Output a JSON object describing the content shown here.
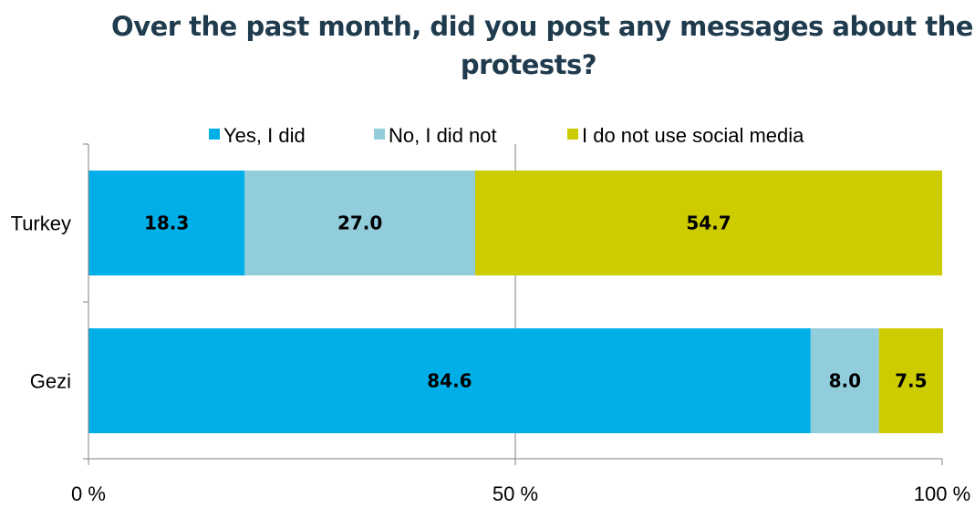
{
  "chart_data": {
    "type": "bar",
    "orientation": "horizontal",
    "stacked": true,
    "title_lines": [
      "Over the past month, did you post any messages about the",
      "protests?"
    ],
    "categories": [
      "Turkey",
      "Gezi"
    ],
    "series": [
      {
        "name": "Yes, I did",
        "values": [
          18.3,
          84.6
        ],
        "labels": [
          "18.3",
          "84.6"
        ],
        "color": "#00aee8"
      },
      {
        "name": "No, I did not",
        "values": [
          27.0,
          8.0
        ],
        "labels": [
          "27.0",
          "8.0"
        ],
        "color": "#92cddc"
      },
      {
        "name": "I do not use social media",
        "values": [
          54.7,
          7.5
        ],
        "labels": [
          "54.7",
          "7.5"
        ],
        "color": "#cccc00"
      }
    ],
    "xlim": [
      0,
      100
    ],
    "xticks": [
      0,
      50,
      100
    ],
    "xtick_labels": [
      "0 %",
      "50 %",
      "100 %"
    ],
    "legend_position": "top",
    "grid": "vertical gridline at 50"
  }
}
